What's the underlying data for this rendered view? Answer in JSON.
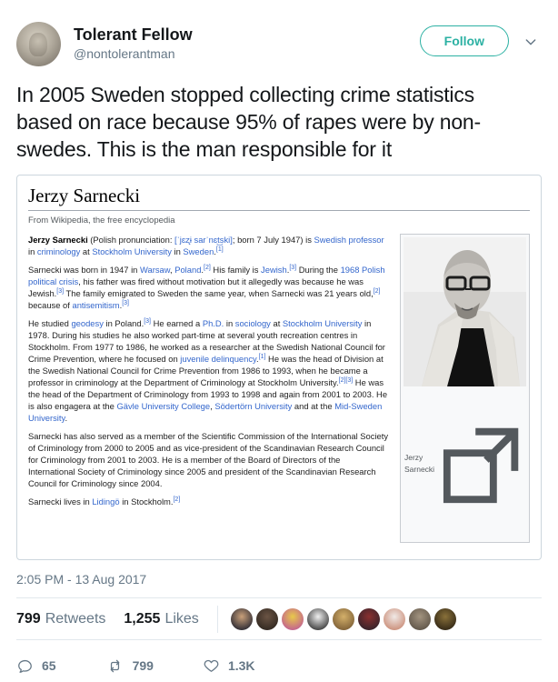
{
  "tweet": {
    "author": {
      "name": "Tolerant Fellow",
      "handle": "@nontolerantman"
    },
    "follow_label": "Follow",
    "body": "In 2005 Sweden stopped collecting crime statistics based on race because 95% of rapes were by non-swedes. This is the man responsible for it",
    "timestamp": "2:05 PM - 13 Aug 2017"
  },
  "wiki": {
    "title": "Jerzy Sarnecki",
    "tagline": "From Wikipedia, the free encyclopedia",
    "thumb_caption": "Jerzy Sarnecki",
    "paragraphs": [
      [
        [
          "b",
          "Jerzy Sarnecki"
        ],
        [
          "t",
          " (Polish pronunciation: "
        ],
        [
          "l",
          "[ˈjɛʐɨ sarˈnɛt͜ski]"
        ],
        [
          "t",
          "; born 7 July 1947) is "
        ],
        [
          "l",
          "Swedish professor"
        ],
        [
          "t",
          " in "
        ],
        [
          "l",
          "criminology"
        ],
        [
          "t",
          " at "
        ],
        [
          "l",
          "Stockholm University"
        ],
        [
          "t",
          " in "
        ],
        [
          "l",
          "Sweden"
        ],
        [
          "t",
          "."
        ],
        [
          "s",
          "[1]"
        ]
      ],
      [
        [
          "t",
          "Sarnecki was born in 1947 in "
        ],
        [
          "l",
          "Warsaw"
        ],
        [
          "t",
          ", "
        ],
        [
          "l",
          "Poland"
        ],
        [
          "t",
          "."
        ],
        [
          "s",
          "[2]"
        ],
        [
          "t",
          " His family is "
        ],
        [
          "l",
          "Jewish"
        ],
        [
          "t",
          "."
        ],
        [
          "s",
          "[3]"
        ],
        [
          "t",
          " During the "
        ],
        [
          "l",
          "1968 Polish political crisis"
        ],
        [
          "t",
          ", his father was fired without motivation but it allegedly was because he was Jewish."
        ],
        [
          "s",
          "[3]"
        ],
        [
          "t",
          " The family emigrated to Sweden the same year, when Sarnecki was 21 years old,"
        ],
        [
          "s",
          "[2]"
        ],
        [
          "t",
          " because of "
        ],
        [
          "l",
          "antisemitism"
        ],
        [
          "t",
          "."
        ],
        [
          "s",
          "[3]"
        ]
      ],
      [
        [
          "t",
          "He studied "
        ],
        [
          "l",
          "geodesy"
        ],
        [
          "t",
          " in Poland."
        ],
        [
          "s",
          "[3]"
        ],
        [
          "t",
          " He earned a "
        ],
        [
          "l",
          "Ph.D."
        ],
        [
          "t",
          " in "
        ],
        [
          "l",
          "sociology"
        ],
        [
          "t",
          " at "
        ],
        [
          "l",
          "Stockholm University"
        ],
        [
          "t",
          " in 1978. During his studies he also worked part-time at several youth recreation centres in Stockholm. From 1977 to 1986, he worked as a researcher at the Swedish National Council for Crime Prevention, where he focused on "
        ],
        [
          "l",
          "juvenile delinquency"
        ],
        [
          "t",
          "."
        ],
        [
          "s",
          "[1]"
        ],
        [
          "t",
          " He was the head of Division at the Swedish National Council for Crime Prevention from 1986 to 1993, when he became a professor in criminology at the Department of Criminology at Stockholm University."
        ],
        [
          "s",
          "[2][3]"
        ],
        [
          "t",
          " He was the head of the Department of Criminology from 1993 to 1998 and again from 2001 to 2003. He is also engagera at the "
        ],
        [
          "l",
          "Gävle University College"
        ],
        [
          "t",
          ", "
        ],
        [
          "l",
          "Södertörn University"
        ],
        [
          "t",
          " and at the "
        ],
        [
          "l",
          "Mid-Sweden University"
        ],
        [
          "t",
          "."
        ]
      ],
      [
        [
          "t",
          "Sarnecki has also served as a member of the Scientific Commission of the International Society of Criminology from 2000 to 2005 and as vice-president of the Scandinavian Research Council for Criminology from 2001 to 2003. He is a member of the Board of Directors of the International Society of Criminology since 2005 and president of the Scandinavian Research Council for Criminology since 2004."
        ]
      ],
      [
        [
          "t",
          "Sarnecki lives in "
        ],
        [
          "l",
          "Lidingö"
        ],
        [
          "t",
          " in Stockholm."
        ],
        [
          "s",
          "[2]"
        ]
      ]
    ]
  },
  "engagement": {
    "retweets_count": "799",
    "retweets_label": "Retweets",
    "likes_count": "1,255",
    "likes_label": "Likes",
    "avatars": [
      [
        "#c9a07a",
        "#23232e"
      ],
      [
        "#6b5444",
        "#2e261f"
      ],
      [
        "#e8c94a",
        "#c05a96"
      ],
      [
        "#f0f0f0",
        "#333333"
      ],
      [
        "#d4b06a",
        "#7a5c34"
      ],
      [
        "#8a3030",
        "#30222a"
      ],
      [
        "#f0e9e6",
        "#c98a74"
      ],
      [
        "#a39480",
        "#5c5246"
      ],
      [
        "#8a713a",
        "#2e2414"
      ]
    ]
  },
  "actions": {
    "reply_count": "65",
    "retweet_count": "799",
    "like_count": "1.3K"
  },
  "icons": {
    "follow_caret": "chevron-down",
    "reply": "speech-bubble",
    "retweet": "retweet-arrows",
    "like": "heart-outline",
    "enlarge": "wiki-enlarge"
  },
  "colors": {
    "accent_teal": "#2cb1a3",
    "link_blue": "#3366cc",
    "text_dark": "#14171a",
    "text_gray": "#657786",
    "border_gray": "#e1e8ed"
  }
}
